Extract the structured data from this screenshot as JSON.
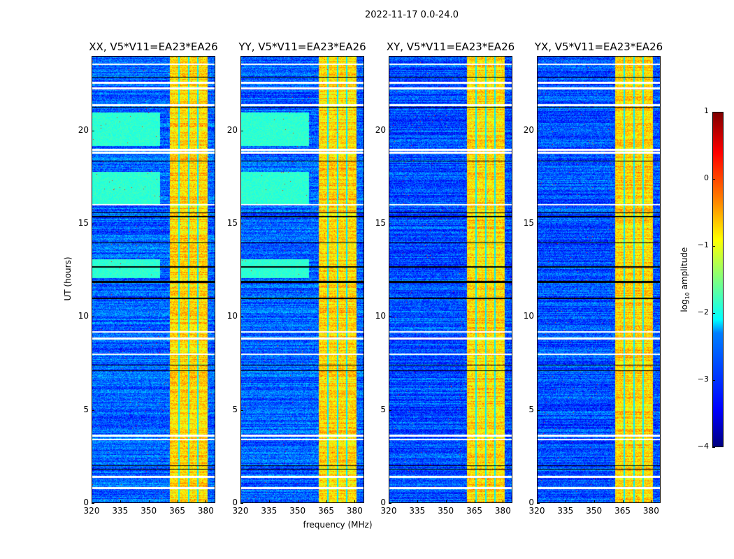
{
  "chart_data": {
    "type": "heatmap",
    "title": "2022-11-17 0.0-24.0",
    "xlabel": "frequency (MHz)",
    "ylabel": "UT (hours)",
    "xlim": [
      320,
      385
    ],
    "ylim": [
      0,
      24
    ],
    "xticks": [
      "320",
      "335",
      "350",
      "365",
      "380"
    ],
    "xtick_values": [
      320,
      335,
      350,
      365,
      380
    ],
    "yticks": [
      "0",
      "5",
      "10",
      "15",
      "20"
    ],
    "ytick_values": [
      0,
      5,
      10,
      15,
      20
    ],
    "panels": [
      {
        "title": "XX, V5*V11=EA23*EA26",
        "base_level": -2.9,
        "green_rows": true
      },
      {
        "title": "YY, V5*V11=EA23*EA26",
        "base_level": -2.9,
        "green_rows": true
      },
      {
        "title": "XY, V5*V11=EA23*EA26",
        "base_level": -3.0,
        "green_rows": false
      },
      {
        "title": "YX, V5*V11=EA23*EA26",
        "base_level": -3.0,
        "green_rows": false
      }
    ],
    "rfi_band_mhz": [
      361,
      381
    ],
    "rfi_band_level": -0.7,
    "band_gaps_mhz": [
      366,
      371,
      376
    ],
    "green_row_hours": [
      [
        19.2,
        21.0
      ],
      [
        16.1,
        17.8
      ],
      [
        12.1,
        13.1
      ]
    ],
    "flagged_white_hours": [
      23.6,
      22.6,
      22.3,
      21.4,
      19.0,
      18.85,
      16.05,
      9.2,
      8.85,
      8.0,
      3.6,
      3.4,
      1.4,
      0.8
    ],
    "black_line_hours": [
      22.9,
      21.3,
      18.4,
      15.6,
      15.4,
      14.0,
      12.7,
      11.9,
      11.85,
      11.0,
      7.4,
      7.1,
      2.0,
      1.8
    ],
    "colorbar": {
      "label": "log10 amplitude",
      "label_main": "log",
      "label_sub": "10",
      "label_rest": " amplitude",
      "range": [
        -4,
        1
      ],
      "ticks": [
        "1",
        "0",
        "−1",
        "−2",
        "−3",
        "−4"
      ],
      "tick_values": [
        1,
        0,
        -1,
        -2,
        -3,
        -4
      ],
      "colormap": "jet"
    }
  }
}
